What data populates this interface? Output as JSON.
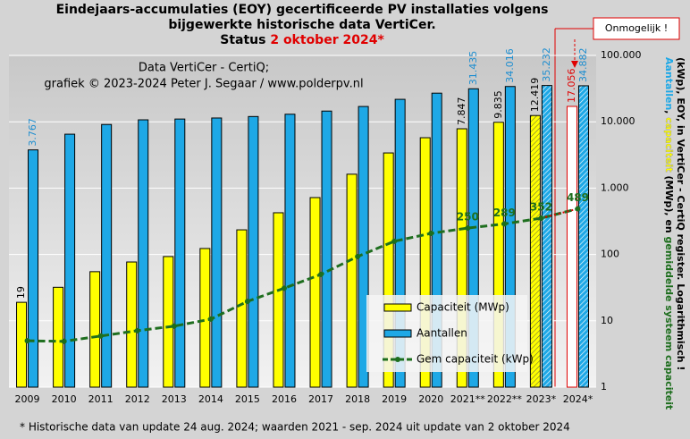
{
  "chart_data": {
    "type": "bar-line",
    "title": [
      "Eindejaars-accumulaties (EOY) gecertificeerde PV installaties volgens",
      "bijgewerkte historische data VertiCer.",
      "Status"
    ],
    "title_highlight": "2 oktober 2024*",
    "annotations": [
      "Data VertiCer - CertiQ;",
      "grafiek © 2023-2024 Peter J. Segaar / www.polderpv.nl"
    ],
    "callout": "Onmogelijk !",
    "footnote": "* Historische data van update 24 aug. 2024; waarden 2021 - sep. 2024 uit update van 2 oktober 2024",
    "y_label": [
      [
        {
          "text": "Aantallen",
          "color": "#1ea8e6"
        },
        {
          "text": ", ",
          "color": "#000000"
        },
        {
          "text": "capaciteit",
          "color": "#ffff00"
        },
        {
          "text": " (MWp), en ",
          "color": "#000000"
        },
        {
          "text": "gemiddelde systeem capaciteit",
          "color": "#1e6e1e"
        }
      ],
      [
        {
          "text": "(kWp), EOY, in VertiCer - CertiQ register. Logarithmisch !",
          "color": "#000000"
        }
      ]
    ],
    "categories": [
      "2009",
      "2010",
      "2011",
      "2012",
      "2013",
      "2014",
      "2015",
      "2016",
      "2017",
      "2018",
      "2019",
      "2020",
      "2021**",
      "2022**",
      "2023*",
      "2024*"
    ],
    "series": [
      {
        "name": "Capaciteit (MWp)",
        "color": "#ffff00",
        "kind": "bar",
        "values": [
          19,
          32,
          55,
          77,
          93,
          123,
          235,
          425,
          720,
          1620,
          3390,
          5750,
          7847,
          9835,
          12419,
          17056
        ],
        "value_labels": [
          "19",
          null,
          null,
          null,
          null,
          null,
          null,
          null,
          null,
          null,
          null,
          null,
          "7.847",
          "9.835",
          "12.419",
          "17.056"
        ]
      },
      {
        "name": "Aantallen",
        "color": "#1ea8e6",
        "kind": "bar",
        "values": [
          3767,
          6500,
          9100,
          10700,
          11000,
          11400,
          12000,
          13000,
          14500,
          17000,
          21800,
          27000,
          31435,
          34016,
          35232,
          34882
        ],
        "value_labels": [
          "3.767",
          null,
          null,
          null,
          null,
          null,
          null,
          null,
          null,
          null,
          null,
          null,
          "31.435",
          "34.016",
          "35.232",
          "34.882"
        ]
      },
      {
        "name": "Gem capaciteit (kWp)",
        "color": "#1e6e1e",
        "kind": "line",
        "values": [
          5.0,
          4.9,
          5.9,
          7.1,
          8.3,
          10.6,
          19.6,
          31,
          50,
          93,
          158,
          208,
          250,
          289,
          352,
          489
        ],
        "value_labels": [
          null,
          null,
          null,
          null,
          null,
          null,
          null,
          null,
          null,
          null,
          null,
          null,
          "250",
          "289",
          "352",
          "489"
        ]
      }
    ],
    "log_scale": true,
    "ylim": [
      1,
      100000
    ],
    "yticks": [
      1,
      10,
      100,
      {
        "value": 1000,
        "label": "1.000"
      },
      {
        "value": 10000,
        "label": "10.000"
      },
      {
        "value": 100000,
        "label": "100.000"
      }
    ],
    "grid": true
  }
}
